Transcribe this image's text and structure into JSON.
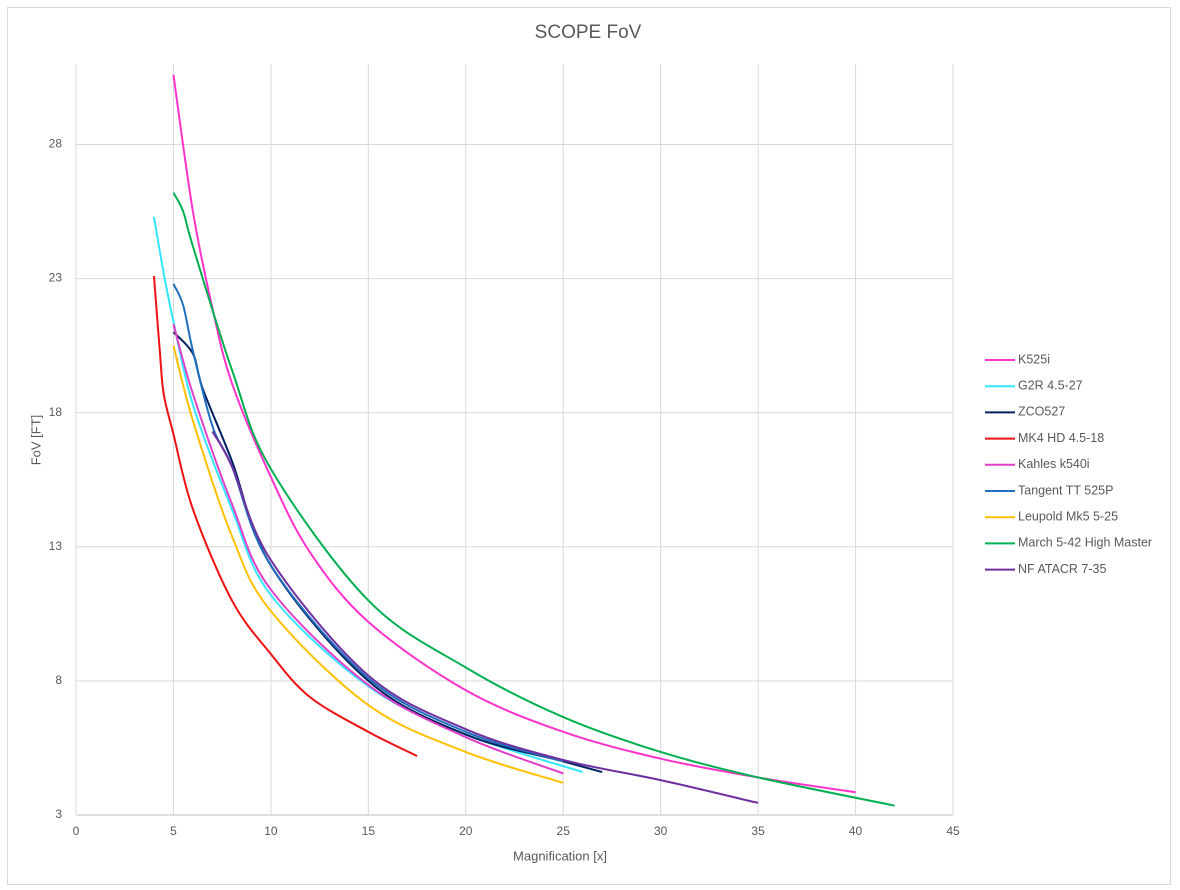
{
  "chart_data": {
    "type": "line",
    "title": "SCOPE FoV",
    "x_label": "Magnification [x]",
    "y_label": "FoV [FT]",
    "xlim": [
      0,
      45
    ],
    "xticks": [
      0,
      5,
      10,
      15,
      20,
      25,
      30,
      35,
      40,
      45
    ],
    "ylim": [
      3,
      31
    ],
    "yticks": [
      3,
      8,
      13,
      18,
      23,
      28
    ],
    "grid": true,
    "legend": "right",
    "series": [
      {
        "name": "K525i",
        "color": "#ff33cc",
        "x": [
          5,
          6,
          7,
          8,
          10,
          12,
          15,
          20,
          25,
          30,
          35,
          40
        ],
        "values": [
          30.6,
          25.5,
          21.9,
          19.1,
          15.6,
          12.8,
          10.2,
          7.65,
          6.1,
          5.1,
          4.4,
          3.85
        ]
      },
      {
        "name": "G2R 4.5-27",
        "color": "#33e6ff",
        "x": [
          4,
          4.5,
          5,
          6,
          8,
          10,
          15,
          20,
          26
        ],
        "values": [
          25.3,
          23.2,
          21.4,
          18.3,
          14.4,
          11.2,
          7.8,
          6.0,
          4.6
        ]
      },
      {
        "name": "ZCO527",
        "color": "#002060",
        "x": [
          5,
          6,
          6.5,
          8,
          10,
          15,
          20,
          25,
          27
        ],
        "values": [
          21.0,
          20.2,
          18.9,
          16.2,
          12.3,
          8.0,
          6.0,
          5.0,
          4.6
        ]
      },
      {
        "name": "MK4 HD 4.5-18",
        "color": "#ee1111",
        "x": [
          4,
          4.3,
          4.5,
          5,
          6,
          8,
          10,
          12,
          15,
          17.5
        ],
        "values": [
          23.1,
          20.3,
          18.7,
          17.2,
          14.4,
          11.0,
          9.0,
          7.4,
          6.1,
          5.2
        ]
      },
      {
        "name": "Kahles k540i",
        "color": "#e040c8",
        "x": [
          5,
          6,
          8,
          10,
          15,
          20,
          25
        ],
        "values": [
          21.3,
          18.7,
          14.6,
          11.4,
          7.85,
          5.9,
          4.55
        ]
      },
      {
        "name": "Tangent TT 525P",
        "color": "#1f6fbf",
        "x": [
          5,
          5.5,
          6,
          7,
          8,
          10,
          15,
          20,
          25
        ],
        "values": [
          22.8,
          22.0,
          20.3,
          17.5,
          16.0,
          12.3,
          8.1,
          6.1,
          5.0
        ]
      },
      {
        "name": "Leupold Mk5 5-25",
        "color": "#ffc000",
        "x": [
          5,
          6,
          8,
          10,
          15,
          20,
          25
        ],
        "values": [
          20.5,
          17.7,
          13.4,
          10.6,
          7.1,
          5.35,
          4.2
        ]
      },
      {
        "name": "March 5-42 High Master",
        "color": "#00b050",
        "x": [
          5,
          5.5,
          6,
          8,
          10,
          15,
          20,
          25,
          30,
          35,
          42
        ],
        "values": [
          26.2,
          25.5,
          24.2,
          19.6,
          15.9,
          11.0,
          8.5,
          6.65,
          5.35,
          4.4,
          3.35
        ]
      },
      {
        "name": "NF ATACR 7-35",
        "color": "#7030a0",
        "x": [
          7,
          8,
          10,
          15,
          20,
          25,
          30,
          35
        ],
        "values": [
          17.3,
          16.0,
          12.5,
          8.2,
          6.2,
          5.05,
          4.3,
          3.45
        ]
      }
    ]
  }
}
